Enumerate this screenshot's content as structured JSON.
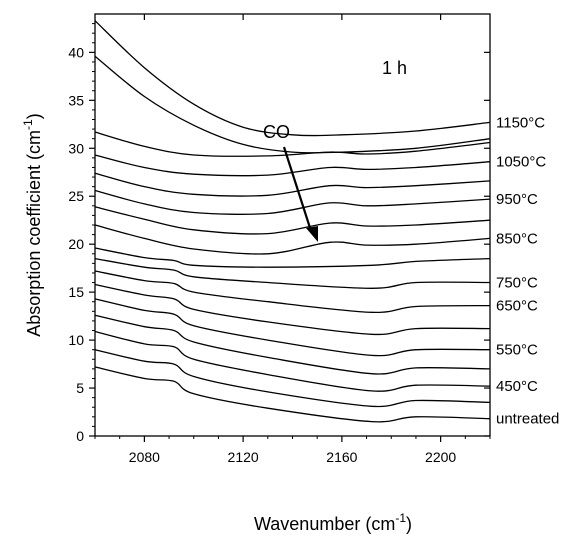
{
  "chart_data": {
    "type": "line",
    "title": "",
    "annotation": "1 h",
    "arrow_label": "CO",
    "xlabel_main": "Wavenumber (cm",
    "xlabel_sup": "-1",
    "xlabel_end": ")",
    "ylabel_main": "Absorption coefficient (cm",
    "ylabel_sup": "-1",
    "ylabel_end": ")",
    "xlim": [
      2060,
      2220
    ],
    "ylim": [
      0,
      44
    ],
    "xticks": [
      2080,
      2120,
      2160,
      2200
    ],
    "yticks": [
      0,
      5,
      10,
      15,
      20,
      25,
      30,
      35,
      40
    ],
    "grid": false,
    "series": [
      {
        "name": "untreated",
        "label": "untreated",
        "points": [
          [
            2060,
            7.2
          ],
          [
            2080,
            6.0
          ],
          [
            2092,
            5.7
          ],
          [
            2100,
            4.4
          ],
          [
            2130,
            2.9
          ],
          [
            2172,
            1.5
          ],
          [
            2190,
            2.0
          ],
          [
            2220,
            1.8
          ]
        ]
      },
      {
        "label": "",
        "points": [
          [
            2060,
            9.0
          ],
          [
            2080,
            7.8
          ],
          [
            2092,
            7.5
          ],
          [
            2100,
            6.2
          ],
          [
            2130,
            4.6
          ],
          [
            2172,
            3.1
          ],
          [
            2190,
            3.7
          ],
          [
            2220,
            3.5
          ]
        ]
      },
      {
        "name": "450°C",
        "label": "450°C",
        "points": [
          [
            2060,
            10.9
          ],
          [
            2080,
            9.6
          ],
          [
            2092,
            9.3
          ],
          [
            2100,
            8.0
          ],
          [
            2130,
            6.4
          ],
          [
            2172,
            4.7
          ],
          [
            2190,
            5.3
          ],
          [
            2220,
            5.2
          ]
        ]
      },
      {
        "label": "",
        "points": [
          [
            2060,
            12.6
          ],
          [
            2080,
            11.4
          ],
          [
            2092,
            11.0
          ],
          [
            2100,
            9.8
          ],
          [
            2130,
            8.2
          ],
          [
            2172,
            6.5
          ],
          [
            2190,
            7.1
          ],
          [
            2220,
            7.0
          ]
        ]
      },
      {
        "name": "550°C",
        "label": "550°C",
        "points": [
          [
            2060,
            14.3
          ],
          [
            2080,
            13.1
          ],
          [
            2092,
            12.7
          ],
          [
            2100,
            11.5
          ],
          [
            2130,
            10.0
          ],
          [
            2172,
            8.4
          ],
          [
            2190,
            9.0
          ],
          [
            2220,
            9.0
          ]
        ]
      },
      {
        "label": "",
        "points": [
          [
            2060,
            15.8
          ],
          [
            2080,
            14.7
          ],
          [
            2092,
            14.3
          ],
          [
            2100,
            13.2
          ],
          [
            2130,
            11.9
          ],
          [
            2172,
            10.6
          ],
          [
            2190,
            11.2
          ],
          [
            2220,
            11.2
          ]
        ]
      },
      {
        "name": "650°C",
        "label": "650°C",
        "points": [
          [
            2060,
            17.2
          ],
          [
            2080,
            16.2
          ],
          [
            2092,
            15.9
          ],
          [
            2100,
            15.0
          ],
          [
            2130,
            14.0
          ],
          [
            2172,
            12.9
          ],
          [
            2190,
            13.5
          ],
          [
            2220,
            13.6
          ]
        ]
      },
      {
        "name": "750°C",
        "label": "750°C",
        "points": [
          [
            2060,
            18.5
          ],
          [
            2080,
            17.6
          ],
          [
            2092,
            17.3
          ],
          [
            2100,
            16.6
          ],
          [
            2130,
            16.0
          ],
          [
            2172,
            15.4
          ],
          [
            2190,
            16.0
          ],
          [
            2220,
            16.0
          ]
        ]
      },
      {
        "label": "",
        "points": [
          [
            2060,
            19.6
          ],
          [
            2080,
            18.6
          ],
          [
            2092,
            18.3
          ],
          [
            2100,
            17.8
          ],
          [
            2130,
            17.6
          ],
          [
            2172,
            17.8
          ],
          [
            2190,
            18.2
          ],
          [
            2220,
            18.5
          ]
        ]
      },
      {
        "name": "850°C",
        "label": "850°C",
        "points": [
          [
            2060,
            22.0
          ],
          [
            2080,
            20.6
          ],
          [
            2100,
            19.5
          ],
          [
            2130,
            19.0
          ],
          [
            2155,
            20.2
          ],
          [
            2170,
            19.9
          ],
          [
            2190,
            20.0
          ],
          [
            2220,
            20.6
          ]
        ]
      },
      {
        "label": "",
        "points": [
          [
            2060,
            23.9
          ],
          [
            2080,
            22.6
          ],
          [
            2100,
            21.5
          ],
          [
            2130,
            21.1
          ],
          [
            2155,
            22.2
          ],
          [
            2170,
            21.9
          ],
          [
            2190,
            22.0
          ],
          [
            2220,
            22.5
          ]
        ]
      },
      {
        "name": "950°C",
        "label": "950°C",
        "points": [
          [
            2060,
            25.6
          ],
          [
            2080,
            24.2
          ],
          [
            2100,
            23.3
          ],
          [
            2130,
            23.2
          ],
          [
            2155,
            24.3
          ],
          [
            2170,
            24.0
          ],
          [
            2190,
            24.2
          ],
          [
            2220,
            24.7
          ]
        ]
      },
      {
        "label": "",
        "points": [
          [
            2060,
            27.4
          ],
          [
            2080,
            26.0
          ],
          [
            2100,
            25.2
          ],
          [
            2130,
            25.1
          ],
          [
            2155,
            26.1
          ],
          [
            2170,
            25.9
          ],
          [
            2190,
            26.1
          ],
          [
            2220,
            26.6
          ]
        ]
      },
      {
        "name": "1050°C",
        "label": "1050°C",
        "points": [
          [
            2060,
            29.3
          ],
          [
            2080,
            28.0
          ],
          [
            2100,
            27.3
          ],
          [
            2130,
            27.2
          ],
          [
            2155,
            28.0
          ],
          [
            2170,
            27.8
          ],
          [
            2190,
            28.0
          ],
          [
            2220,
            28.6
          ]
        ]
      },
      {
        "label": "",
        "points": [
          [
            2060,
            31.7
          ],
          [
            2080,
            30.2
          ],
          [
            2100,
            29.3
          ],
          [
            2130,
            29.2
          ],
          [
            2155,
            29.6
          ],
          [
            2170,
            29.4
          ],
          [
            2190,
            29.7
          ],
          [
            2220,
            30.6
          ]
        ]
      },
      {
        "label": "",
        "points": [
          [
            2060,
            39.6
          ],
          [
            2080,
            35.4
          ],
          [
            2100,
            32.4
          ],
          [
            2120,
            30.4
          ],
          [
            2140,
            29.6
          ],
          [
            2160,
            29.6
          ],
          [
            2190,
            30.0
          ],
          [
            2220,
            31.0
          ]
        ]
      },
      {
        "name": "1150°C",
        "label": "1150°C",
        "points": [
          [
            2060,
            43.3
          ],
          [
            2080,
            38.4
          ],
          [
            2100,
            34.6
          ],
          [
            2120,
            32.2
          ],
          [
            2140,
            31.4
          ],
          [
            2160,
            31.4
          ],
          [
            2190,
            31.8
          ],
          [
            2220,
            32.7
          ]
        ]
      }
    ]
  }
}
